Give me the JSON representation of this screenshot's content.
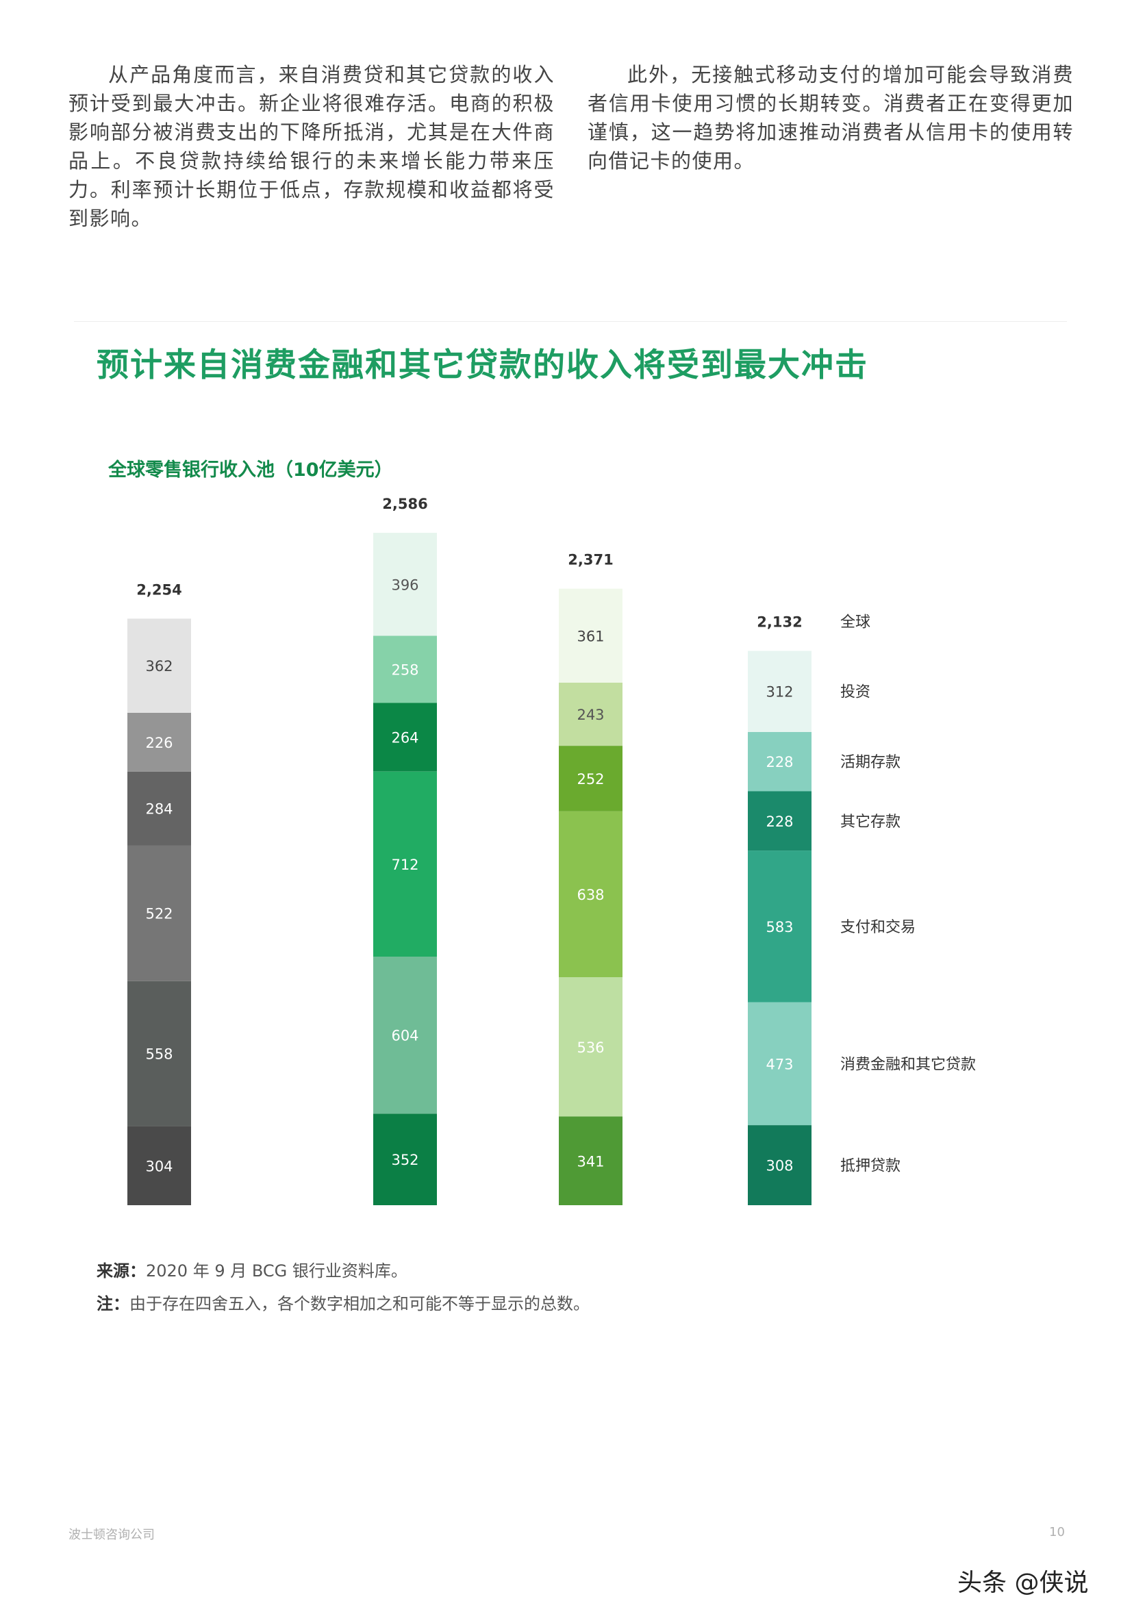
{
  "paragraphs": {
    "left": "从产品角度而言，来自消费贷和其它贷款的收入预计受到最大冲击。新企业将很难存活。电商的积极影响部分被消费支出的下降所抵消，尤其是在大件商品上。不良贷款持续给银行的未来增长能力带来压力。利率预计长期位于低点，存款规模和收益都将受到影响。",
    "right": "此外，无接触式移动支付的增加可能会导致消费者信用卡使用习惯的长期转变。消费者正在变得更加谨慎，这一趋势将加速推动消费者从信用卡的使用转向借记卡的使用。"
  },
  "heading": "预计来自消费金融和其它贷款的收入将受到最大冲击",
  "chart_data": {
    "type": "bar",
    "stacked": true,
    "title": "全球零售银行收入池（10亿美元）",
    "legend_header": "全球",
    "series": [
      {
        "name": "抵押贷款",
        "values": [
          304,
          352,
          341,
          308
        ],
        "colors": [
          "#4a4a4a",
          "#0b7f45",
          "#4f9a35",
          "#127a5a"
        ]
      },
      {
        "name": "消费金融和其它贷款",
        "values": [
          558,
          604,
          536,
          473
        ],
        "colors": [
          "#5a5e5c",
          "#6fbc96",
          "#bedfa2",
          "#87d0bf"
        ]
      },
      {
        "name": "支付和交易",
        "values": [
          522,
          712,
          638,
          583
        ],
        "colors": [
          "#767676",
          "#21ac63",
          "#8bc24f",
          "#31a688"
        ]
      },
      {
        "name": "其它存款",
        "values": [
          284,
          264,
          252,
          228
        ],
        "colors": [
          "#646464",
          "#0b8746",
          "#6aaa2e",
          "#1b8a6b"
        ]
      },
      {
        "name": "活期存款",
        "values": [
          226,
          258,
          243,
          228
        ],
        "colors": [
          "#959595",
          "#86d2a9",
          "#c2dea0",
          "#87d0bf"
        ]
      },
      {
        "name": "投资",
        "values": [
          362,
          396,
          361,
          312
        ],
        "colors": [
          "#e3e3e3",
          "#e6f5ed",
          "#f0f8ea",
          "#e7f5f1"
        ]
      }
    ],
    "totals": [
      "2,254",
      "2,586",
      "2,371",
      "2,132"
    ],
    "label_colors": [
      [
        "#ffffff",
        "#ffffff",
        "#ffffff",
        "#ffffff"
      ],
      [
        "#ffffff",
        "#ffffff",
        "#ffffff",
        "#ffffff"
      ],
      [
        "#ffffff",
        "#ffffff",
        "#ffffff",
        "#ffffff"
      ],
      [
        "#ffffff",
        "#ffffff",
        "#ffffff",
        "#ffffff"
      ],
      [
        "#ffffff",
        "#ffffff",
        "#555555",
        "#ffffff"
      ],
      [
        "#444444",
        "#555555",
        "#444444",
        "#444444"
      ]
    ]
  },
  "notes": {
    "source_label": "来源：",
    "source_text": "2020 年 9 月 BCG 银行业资料库。",
    "note_label": "注：",
    "note_text": "由于存在四舍五入，各个数字相加之和可能不等于显示的总数。"
  },
  "footer": {
    "company": "波士顿咨询公司",
    "page": "10",
    "watermark": "头条 @侠说"
  }
}
